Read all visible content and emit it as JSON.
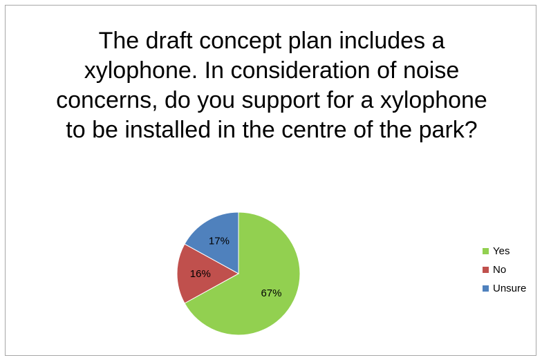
{
  "chart_data": {
    "type": "pie",
    "title": "The draft concept plan includes a xylophone. In consideration of noise concerns, do you support for a xylophone to be installed in the centre of the park?",
    "categories": [
      "Yes",
      "No",
      "Unsure"
    ],
    "values": [
      67,
      16,
      17
    ],
    "data_labels": [
      "67%",
      "16%",
      "17%"
    ],
    "colors": [
      "#92d050",
      "#c0504d",
      "#4f81bd"
    ],
    "legend_position": "right"
  }
}
